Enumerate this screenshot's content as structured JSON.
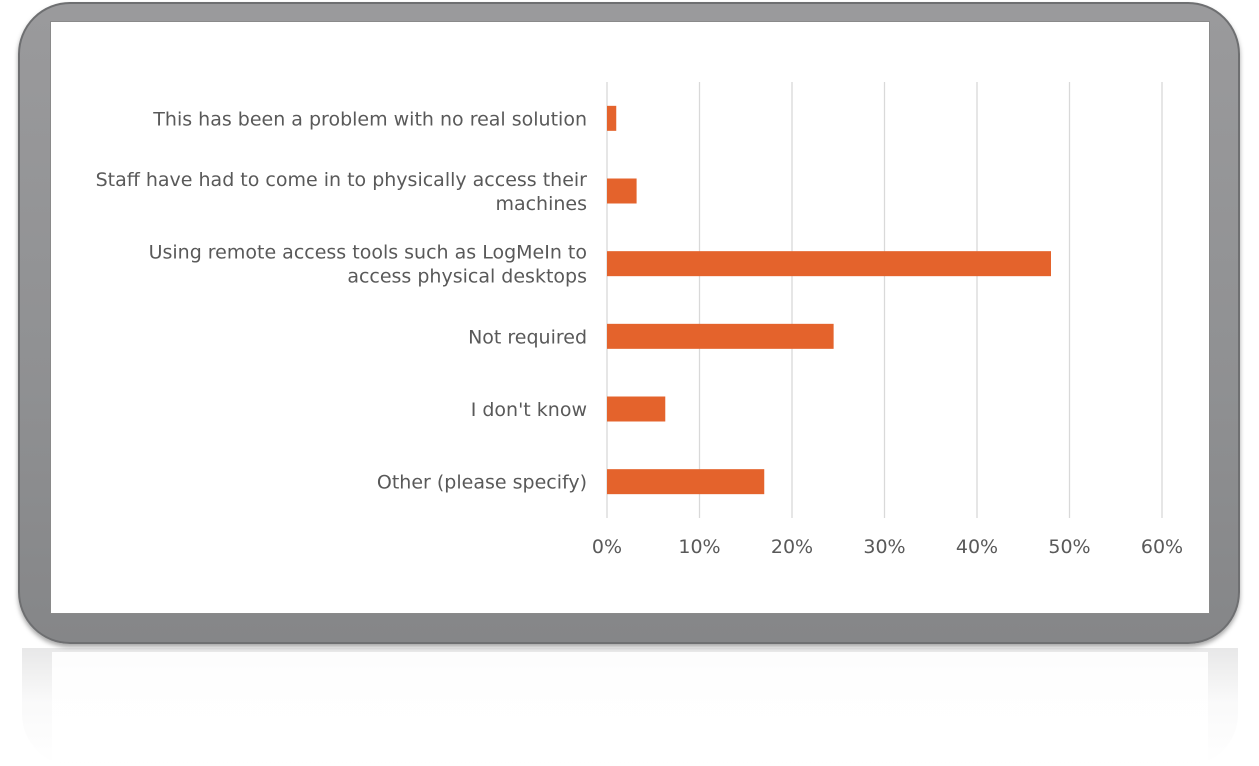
{
  "chart_data": {
    "type": "bar",
    "orientation": "horizontal",
    "categories": [
      "This has been a problem with no real solution",
      "Staff have had to come in to physically access their machines",
      "Using remote access tools such as LogMeIn to access physical desktops",
      "Not required",
      "I don't know",
      "Other (please specify)"
    ],
    "category_lines": [
      [
        "This has been a problem with no real solution"
      ],
      [
        "Staff have had to come in to physically access their",
        "machines"
      ],
      [
        "Using remote access tools such as LogMeIn to",
        "access physical desktops"
      ],
      [
        "Not required"
      ],
      [
        "I don't know"
      ],
      [
        "Other (please specify)"
      ]
    ],
    "values": [
      1,
      3.2,
      48,
      24.5,
      6.3,
      17
    ],
    "xlim": [
      0,
      60
    ],
    "ticks": [
      "0%",
      "10%",
      "20%",
      "30%",
      "40%",
      "50%",
      "60%"
    ],
    "tick_values": [
      0,
      10,
      20,
      30,
      40,
      50,
      60
    ],
    "title": "",
    "xlabel": "",
    "ylabel": "",
    "grid": "vertical",
    "legend": "none",
    "bar_color": "#e4632c",
    "grid_color": "#d9d9d9",
    "label_color": "#595959"
  }
}
